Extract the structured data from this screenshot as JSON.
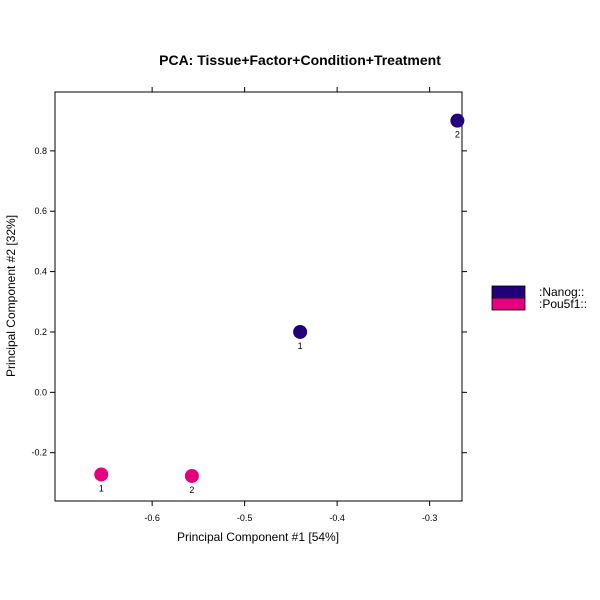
{
  "chart_data": {
    "type": "scatter",
    "title": "PCA: Tissue+Factor+Condition+Treatment",
    "xlabel": "Principal Component #1 [54%]",
    "ylabel": "Principal Component #2 [32%]",
    "xlim": [
      -0.705,
      -0.265
    ],
    "ylim": [
      -0.36,
      0.995
    ],
    "xticks": [
      -0.6,
      -0.5,
      -0.4,
      -0.3
    ],
    "yticks": [
      -0.2,
      0.0,
      0.2,
      0.4,
      0.6,
      0.8
    ],
    "xtick_labels": [
      "-0.6",
      "-0.5",
      "-0.4",
      "-0.3"
    ],
    "ytick_labels": [
      "-0.2",
      "0.0",
      "0.2",
      "0.4",
      "0.6",
      "0.8"
    ],
    "grid": false,
    "legend_position": "right",
    "series": [
      {
        "name": ":Nanog::",
        "color": "#22007a",
        "points": [
          {
            "x": -0.44,
            "y": 0.2,
            "label": "1"
          },
          {
            "x": -0.27,
            "y": 0.9,
            "label": "2"
          }
        ]
      },
      {
        "name": ":Pou5f1::",
        "color": "#e4007f",
        "points": [
          {
            "x": -0.655,
            "y": -0.272,
            "label": "1"
          },
          {
            "x": -0.557,
            "y": -0.277,
            "label": "2"
          }
        ]
      }
    ]
  }
}
